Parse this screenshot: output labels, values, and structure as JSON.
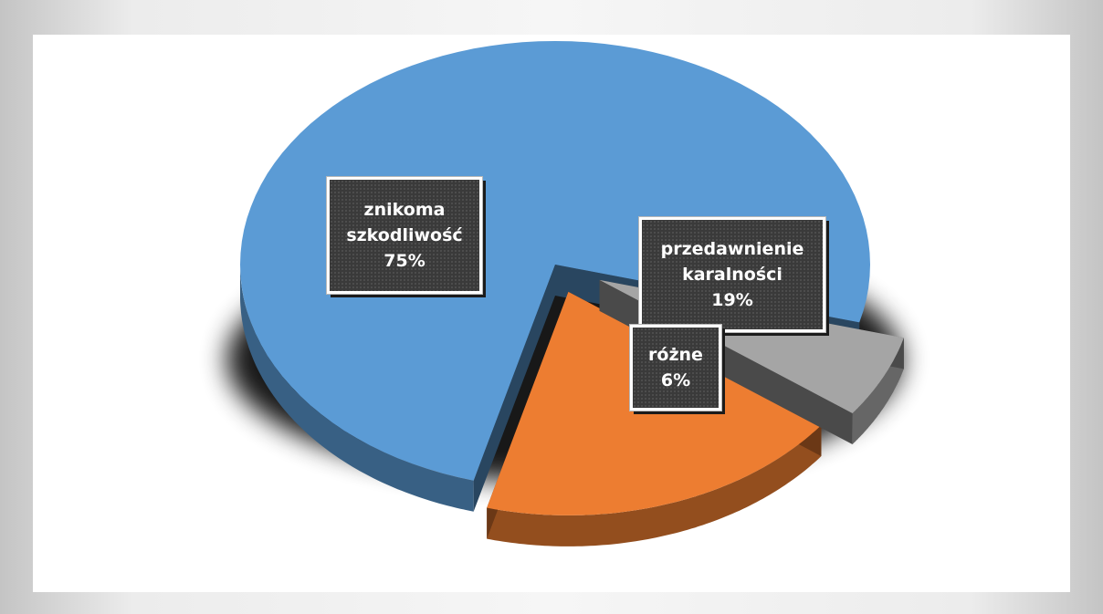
{
  "chart_data": {
    "type": "pie",
    "title": "",
    "categories": [
      "znikoma szkodliwość",
      "przedawnienie karalności",
      "różne"
    ],
    "values": [
      75,
      19,
      6
    ],
    "value_unit": "%",
    "three_d": true,
    "exploded": true,
    "colors": [
      "#5b9bd5",
      "#ed7d31",
      "#a5a5a5"
    ],
    "data_labels": [
      {
        "lines": [
          "znikoma",
          "szkodliwość",
          "75%"
        ]
      },
      {
        "lines": [
          "przedawnienie",
          "karalności",
          "19%"
        ]
      },
      {
        "lines": [
          "różne",
          "6%"
        ]
      }
    ],
    "legend": "none"
  }
}
